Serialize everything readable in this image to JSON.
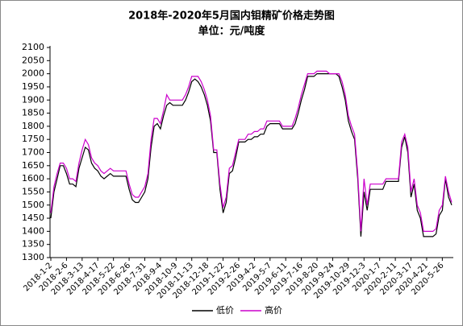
{
  "chart_data": {
    "type": "line",
    "title": "2018年-2020年5月国内钼精矿价格走势图",
    "subtitle": "单位：元/吨度",
    "categories": [
      "2018-1-2",
      null,
      null,
      null,
      null,
      "2018-2-6",
      null,
      null,
      null,
      null,
      "2018-3-13",
      null,
      null,
      null,
      null,
      "2018-4-17",
      null,
      null,
      null,
      null,
      "2018-5-22",
      null,
      null,
      null,
      null,
      "2018-6-26",
      null,
      null,
      null,
      null,
      "2018-7-31",
      null,
      null,
      null,
      null,
      "2018-9-4",
      null,
      null,
      null,
      null,
      "2018-10-9",
      null,
      null,
      null,
      null,
      "2018-11-13",
      null,
      null,
      null,
      null,
      "2018-12-18",
      null,
      null,
      null,
      null,
      "2019-1-22",
      null,
      null,
      null,
      null,
      "2019-2-26",
      null,
      null,
      null,
      null,
      "2019-4-2",
      null,
      null,
      null,
      null,
      "2019-5-7",
      null,
      null,
      null,
      null,
      "2019-6-11",
      null,
      null,
      null,
      null,
      "2019-7-16",
      null,
      null,
      null,
      null,
      "2019-8-20",
      null,
      null,
      null,
      null,
      "2019-9-24",
      null,
      null,
      null,
      null,
      "2019-10-29",
      null,
      null,
      null,
      null,
      "2019-12-3",
      null,
      null,
      null,
      null,
      "2020-1-7",
      null,
      null,
      null,
      null,
      "2020-2-11",
      null,
      null,
      null,
      null,
      "2020-3-17",
      null,
      null,
      null,
      null,
      "2020-4-21",
      null,
      null,
      null,
      null,
      "2020-5-26",
      null,
      null,
      null
    ],
    "series": [
      {
        "name": "低价",
        "color": "#000000",
        "values": [
          1450,
          1550,
          1600,
          1650,
          1650,
          1620,
          1580,
          1580,
          1570,
          1640,
          1680,
          1720,
          1710,
          1660,
          1640,
          1630,
          1610,
          1600,
          1610,
          1620,
          1610,
          1610,
          1610,
          1610,
          1610,
          1560,
          1520,
          1510,
          1510,
          1530,
          1550,
          1600,
          1720,
          1800,
          1810,
          1790,
          1840,
          1880,
          1890,
          1880,
          1880,
          1880,
          1880,
          1900,
          1930,
          1970,
          1980,
          1970,
          1950,
          1920,
          1880,
          1820,
          1700,
          1700,
          1560,
          1470,
          1510,
          1620,
          1630,
          1680,
          1740,
          1740,
          1740,
          1750,
          1750,
          1760,
          1760,
          1770,
          1770,
          1800,
          1810,
          1810,
          1810,
          1810,
          1790,
          1790,
          1790,
          1790,
          1810,
          1850,
          1900,
          1940,
          1990,
          1990,
          1990,
          2000,
          2000,
          2000,
          2000,
          2000,
          2000,
          2000,
          1990,
          1950,
          1900,
          1820,
          1780,
          1750,
          1600,
          1380,
          1550,
          1480,
          1560,
          1560,
          1560,
          1560,
          1560,
          1590,
          1590,
          1590,
          1590,
          1590,
          1720,
          1760,
          1700,
          1530,
          1580,
          1480,
          1450,
          1380,
          1380,
          1380,
          1380,
          1390,
          1460,
          1480,
          1600,
          1530,
          1500
        ]
      },
      {
        "name": "高价",
        "color": "#cc00cc",
        "values": [
          1470,
          1570,
          1620,
          1660,
          1660,
          1640,
          1600,
          1600,
          1590,
          1660,
          1710,
          1750,
          1730,
          1680,
          1660,
          1650,
          1630,
          1620,
          1630,
          1640,
          1630,
          1630,
          1630,
          1630,
          1630,
          1580,
          1540,
          1530,
          1530,
          1550,
          1570,
          1620,
          1750,
          1830,
          1830,
          1810,
          1860,
          1920,
          1900,
          1900,
          1900,
          1900,
          1900,
          1920,
          1950,
          1990,
          1990,
          1990,
          1970,
          1940,
          1900,
          1840,
          1710,
          1710,
          1580,
          1490,
          1530,
          1640,
          1650,
          1700,
          1750,
          1750,
          1750,
          1770,
          1770,
          1780,
          1780,
          1790,
          1790,
          1820,
          1820,
          1820,
          1820,
          1820,
          1800,
          1800,
          1800,
          1800,
          1830,
          1870,
          1920,
          1960,
          2000,
          2000,
          2000,
          2010,
          2010,
          2010,
          2010,
          2000,
          2000,
          2000,
          2000,
          1970,
          1920,
          1840,
          1800,
          1770,
          1620,
          1400,
          1600,
          1500,
          1580,
          1580,
          1580,
          1580,
          1580,
          1600,
          1600,
          1600,
          1600,
          1600,
          1740,
          1770,
          1720,
          1550,
          1600,
          1500,
          1470,
          1400,
          1400,
          1400,
          1400,
          1410,
          1480,
          1500,
          1610,
          1550,
          1510
        ]
      }
    ],
    "ylim": [
      1300,
      2100
    ],
    "yticks": [
      1300,
      1350,
      1400,
      1450,
      1500,
      1550,
      1600,
      1650,
      1700,
      1750,
      1800,
      1850,
      1900,
      1950,
      2000,
      2050,
      2100
    ],
    "grid": false,
    "legend": "bottom"
  }
}
